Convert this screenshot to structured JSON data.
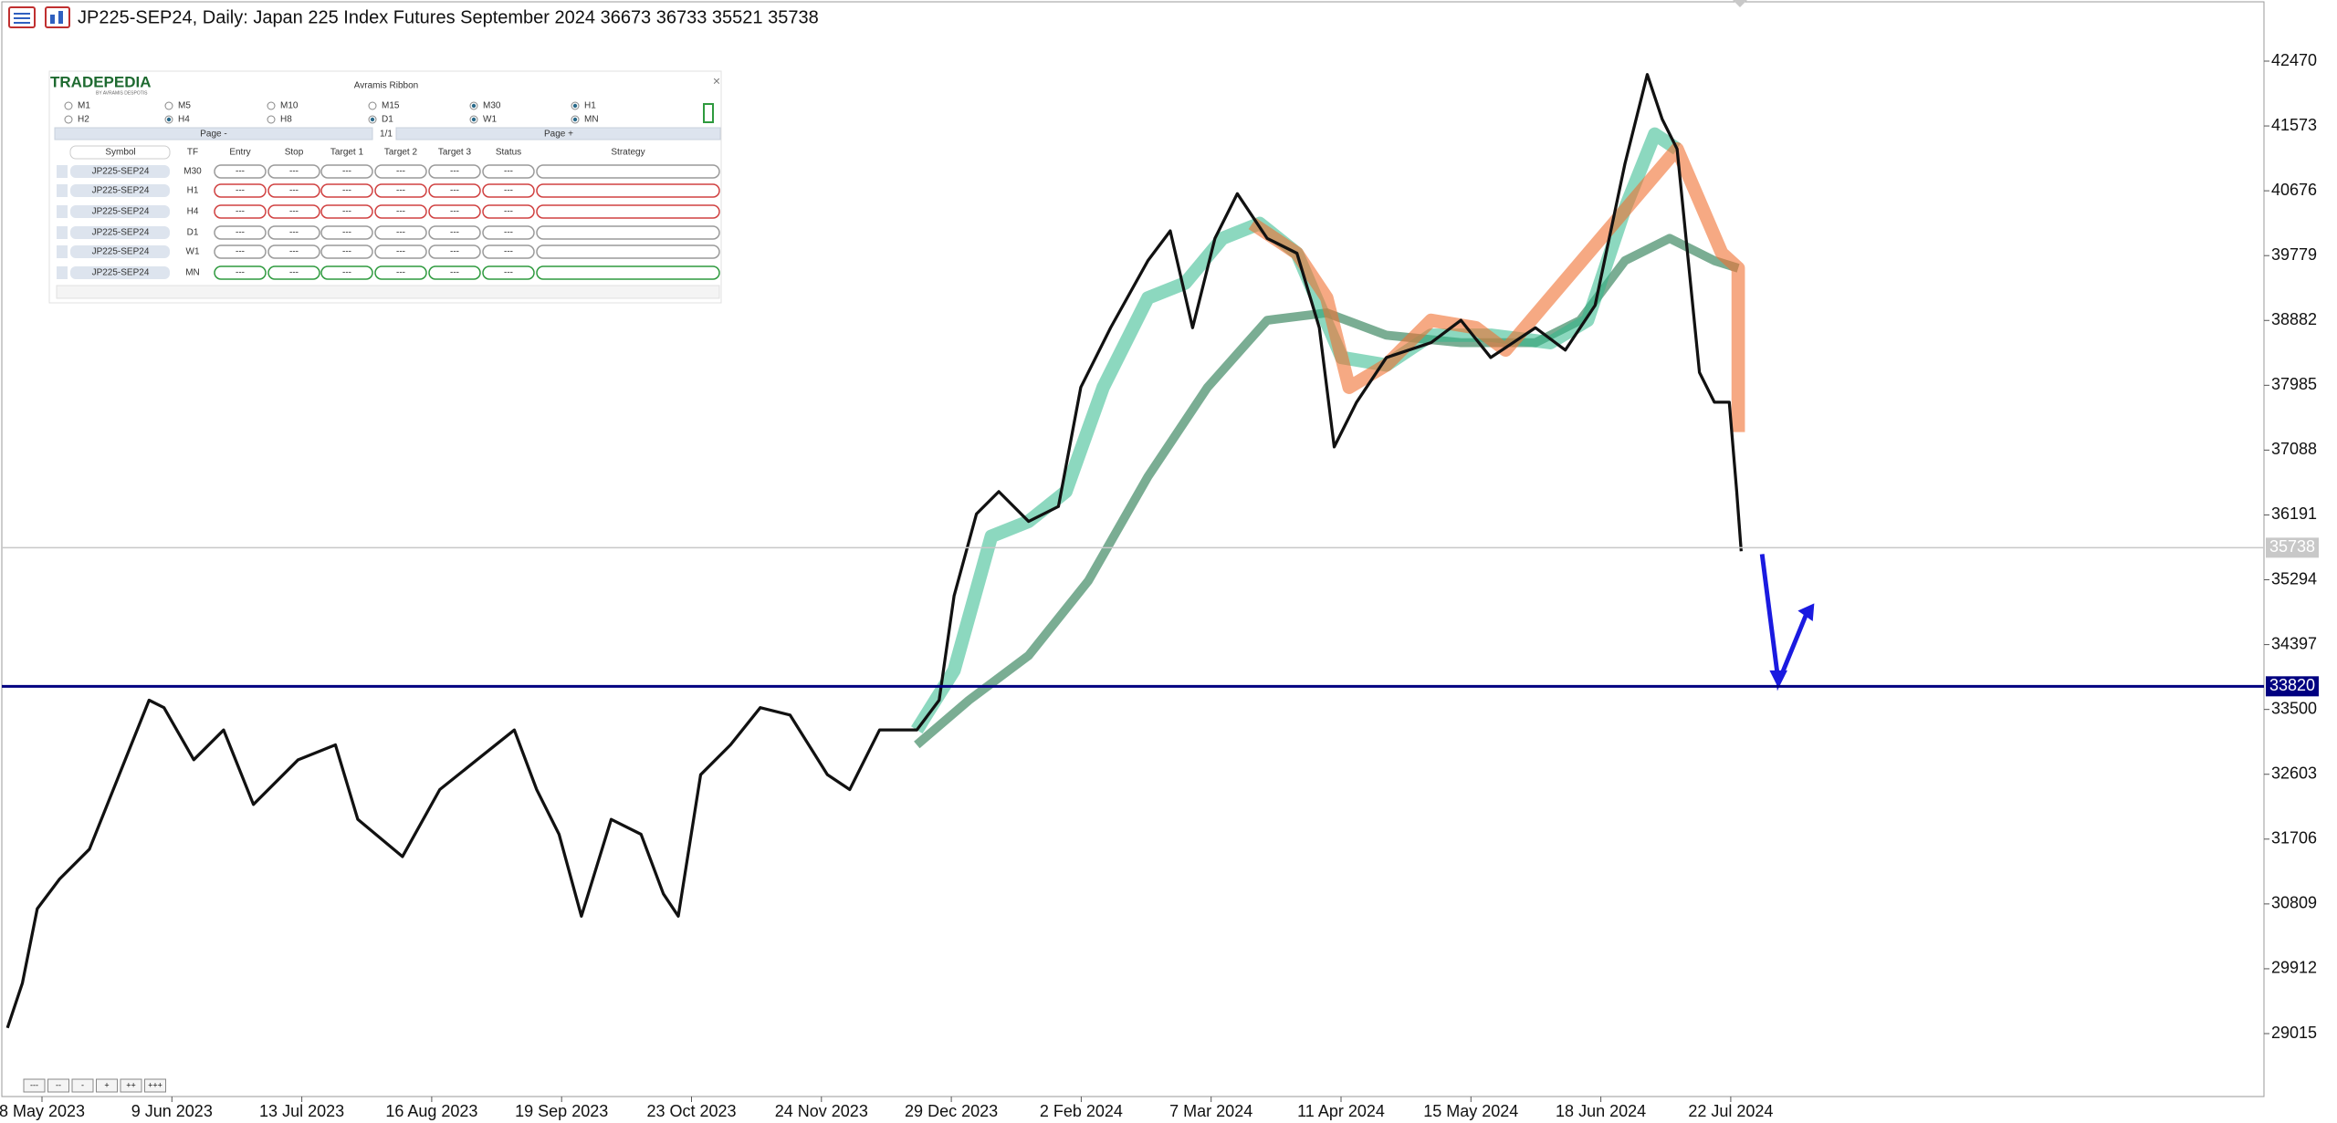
{
  "header": {
    "title": "JP225-SEP24, Daily:  Japan 225 Index Futures September 2024  36673 36733 35521 35738"
  },
  "price_axis": {
    "ticks": [
      42470,
      41573,
      40676,
      39779,
      38882,
      37985,
      37088,
      36191,
      35294,
      34397,
      33500,
      32603,
      31706,
      30809,
      29912,
      29015
    ],
    "levels": [
      {
        "value": 35738,
        "color": "#c8c8c8"
      },
      {
        "value": 33820,
        "color": "#000080"
      }
    ]
  },
  "time_axis": {
    "labels": [
      "8 May 2023",
      "9 Jun 2023",
      "13 Jul 2023",
      "16 Aug 2023",
      "19 Sep 2023",
      "23 Oct 2023",
      "24 Nov 2023",
      "29 Dec 2023",
      "2 Feb 2024",
      "7 Mar 2024",
      "11 Apr 2024",
      "15 May 2024",
      "18 Jun 2024",
      "22 Jul 2024"
    ]
  },
  "panel": {
    "logo": "TRADEPEDIA",
    "logo_sub": "BY AVRAMIS DESPOTIS",
    "title": "Avramis Ribbon",
    "close": "×",
    "timeframes": [
      {
        "label": "M1",
        "checked": false
      },
      {
        "label": "M5",
        "checked": false
      },
      {
        "label": "M10",
        "checked": false
      },
      {
        "label": "M15",
        "checked": false
      },
      {
        "label": "M30",
        "checked": true
      },
      {
        "label": "H1",
        "checked": true
      },
      {
        "label": "H2",
        "checked": false
      },
      {
        "label": "H4",
        "checked": true
      },
      {
        "label": "H8",
        "checked": false
      },
      {
        "label": "D1",
        "checked": true
      },
      {
        "label": "W1",
        "checked": true
      },
      {
        "label": "MN",
        "checked": true
      }
    ],
    "pager": [
      "Page -",
      "1/1",
      "Page +"
    ],
    "columns": [
      "Symbol",
      "TF",
      "Entry",
      "Stop",
      "Target 1",
      "Target 2",
      "Target 3",
      "Status",
      "Strategy"
    ],
    "rows": [
      {
        "symbol": "JP225-SEP24",
        "tf": "M30",
        "color": "#9a9a9a",
        "cells": [
          "---",
          "---",
          "---",
          "---",
          "---",
          "---"
        ]
      },
      {
        "symbol": "JP225-SEP24",
        "tf": "H1",
        "color": "#d04040",
        "cells": [
          "---",
          "---",
          "---",
          "---",
          "---",
          "---"
        ]
      },
      {
        "symbol": "JP225-SEP24",
        "tf": "H4",
        "color": "#d04040",
        "cells": [
          "---",
          "---",
          "---",
          "---",
          "---",
          "---"
        ]
      },
      {
        "symbol": "JP225-SEP24",
        "tf": "D1",
        "color": "#9a9a9a",
        "cells": [
          "---",
          "---",
          "---",
          "---",
          "---",
          "---"
        ]
      },
      {
        "symbol": "JP225-SEP24",
        "tf": "W1",
        "color": "#9a9a9a",
        "cells": [
          "---",
          "---",
          "---",
          "---",
          "---",
          "---"
        ]
      },
      {
        "symbol": "JP225-SEP24",
        "tf": "MN",
        "color": "#2e9a3e",
        "cells": [
          "---",
          "---",
          "---",
          "---",
          "---",
          "---"
        ]
      }
    ]
  },
  "zoom_buttons": [
    "---",
    "--",
    "-",
    "+",
    "++",
    "+++"
  ]
}
